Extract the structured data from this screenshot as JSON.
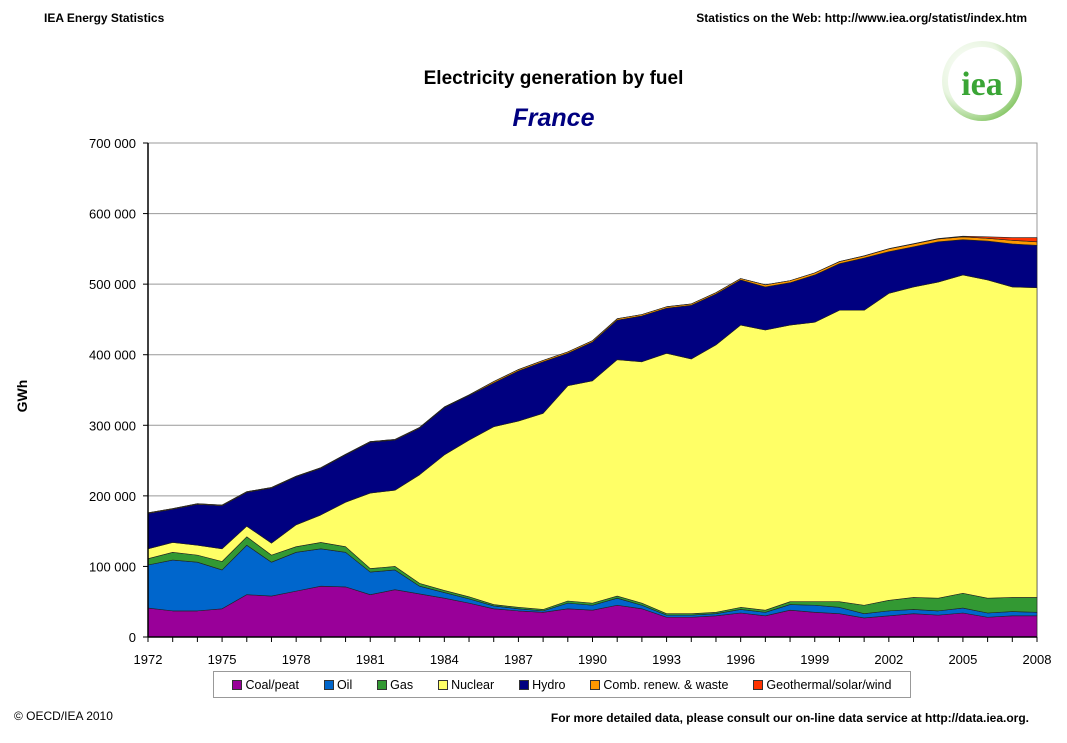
{
  "header": {
    "left": "IEA Energy Statistics",
    "right": "Statistics on the Web: http://www.iea.org/statist/index.htm"
  },
  "logo": {
    "text": "iea",
    "color": "#3aa535"
  },
  "footer": {
    "left": "© OECD/IEA 2010",
    "right": "For more detailed data, please consult our on-line data service at http://data.iea.org."
  },
  "chart_data": {
    "type": "area",
    "stacked": true,
    "title": "Electricity generation by fuel",
    "subtitle": "France",
    "ylabel": "GWh",
    "xlabel": "",
    "ylim": [
      0,
      700000
    ],
    "yticks": [
      0,
      100000,
      200000,
      300000,
      400000,
      500000,
      600000,
      700000
    ],
    "ytick_labels": [
      "0",
      "100 000",
      "200 000",
      "300 000",
      "400 000",
      "500 000",
      "600 000",
      "700 000"
    ],
    "xticks": [
      1972,
      1975,
      1978,
      1981,
      1984,
      1987,
      1990,
      1993,
      1996,
      1999,
      2002,
      2005,
      2008
    ],
    "grid": true,
    "legend_position": "bottom",
    "x": [
      1972,
      1973,
      1974,
      1975,
      1976,
      1977,
      1978,
      1979,
      1980,
      1981,
      1982,
      1983,
      1984,
      1985,
      1986,
      1987,
      1988,
      1989,
      1990,
      1991,
      1992,
      1993,
      1994,
      1995,
      1996,
      1997,
      1998,
      1999,
      2000,
      2001,
      2002,
      2003,
      2004,
      2005,
      2006,
      2007,
      2008
    ],
    "series": [
      {
        "name": "Coal/peat",
        "color": "#990099",
        "values": [
          41000,
          37000,
          37000,
          40000,
          60000,
          58000,
          65000,
          72000,
          71000,
          60000,
          67000,
          61000,
          55000,
          48000,
          40000,
          37000,
          35000,
          40000,
          38000,
          45000,
          40000,
          28000,
          28000,
          30000,
          34000,
          30000,
          38000,
          35000,
          33000,
          27000,
          30000,
          33000,
          31000,
          34000,
          28000,
          30000,
          30000
        ]
      },
      {
        "name": "Oil",
        "color": "#0066CC",
        "values": [
          61000,
          72000,
          69000,
          55000,
          70000,
          48000,
          55000,
          53000,
          49000,
          32000,
          28000,
          11000,
          8000,
          6000,
          4000,
          3000,
          2000,
          8000,
          7000,
          10000,
          5000,
          3000,
          3000,
          3000,
          5000,
          5000,
          8000,
          10000,
          9000,
          6000,
          7000,
          6000,
          6000,
          7000,
          6000,
          6000,
          5000
        ]
      },
      {
        "name": "Gas",
        "color": "#339933",
        "values": [
          9000,
          11000,
          10000,
          12000,
          12000,
          10000,
          8000,
          9000,
          8000,
          5000,
          5000,
          4000,
          3000,
          3000,
          2000,
          2000,
          2000,
          3000,
          3000,
          3000,
          3000,
          2000,
          2000,
          2000,
          3000,
          3000,
          4000,
          5000,
          8000,
          12000,
          15000,
          17000,
          18000,
          21000,
          21000,
          20000,
          21000
        ]
      },
      {
        "name": "Nuclear",
        "color": "#FFFF66",
        "values": [
          14000,
          14000,
          14000,
          18000,
          15000,
          17000,
          31000,
          39000,
          63000,
          107000,
          108000,
          154000,
          192000,
          222000,
          252000,
          264000,
          278000,
          305000,
          315000,
          335000,
          342000,
          369000,
          361000,
          379000,
          400000,
          397000,
          392000,
          396000,
          413000,
          418000,
          435000,
          440000,
          448000,
          451000,
          451000,
          440000,
          439000
        ]
      },
      {
        "name": "Hydro",
        "color": "#000080",
        "values": [
          50000,
          47000,
          58000,
          61000,
          48000,
          78000,
          68000,
          66000,
          67000,
          72000,
          71000,
          66000,
          67000,
          63000,
          62000,
          71000,
          73000,
          46000,
          55000,
          56000,
          65000,
          64000,
          76000,
          72000,
          64000,
          61000,
          60000,
          67000,
          66000,
          74000,
          59000,
          57000,
          57000,
          50000,
          55000,
          61000,
          60000
        ]
      },
      {
        "name": "Comb. renew. & waste",
        "color": "#FF9900",
        "values": [
          1000,
          1000,
          1000,
          1000,
          1000,
          1000,
          1000,
          1000,
          1000,
          1000,
          1000,
          1000,
          1000,
          1000,
          2000,
          2000,
          2000,
          2000,
          2000,
          2000,
          2000,
          2000,
          2000,
          2000,
          2000,
          3000,
          3000,
          3000,
          3000,
          3000,
          4000,
          4000,
          4000,
          4000,
          4000,
          5000,
          5000
        ]
      },
      {
        "name": "Geothermal/solar/wind",
        "color": "#FF3300",
        "values": [
          0,
          0,
          0,
          0,
          0,
          0,
          0,
          0,
          0,
          0,
          0,
          0,
          0,
          0,
          0,
          0,
          0,
          0,
          0,
          0,
          0,
          0,
          0,
          0,
          0,
          0,
          0,
          0,
          100,
          200,
          300,
          400,
          600,
          1000,
          2000,
          4000,
          6000
        ]
      }
    ]
  }
}
